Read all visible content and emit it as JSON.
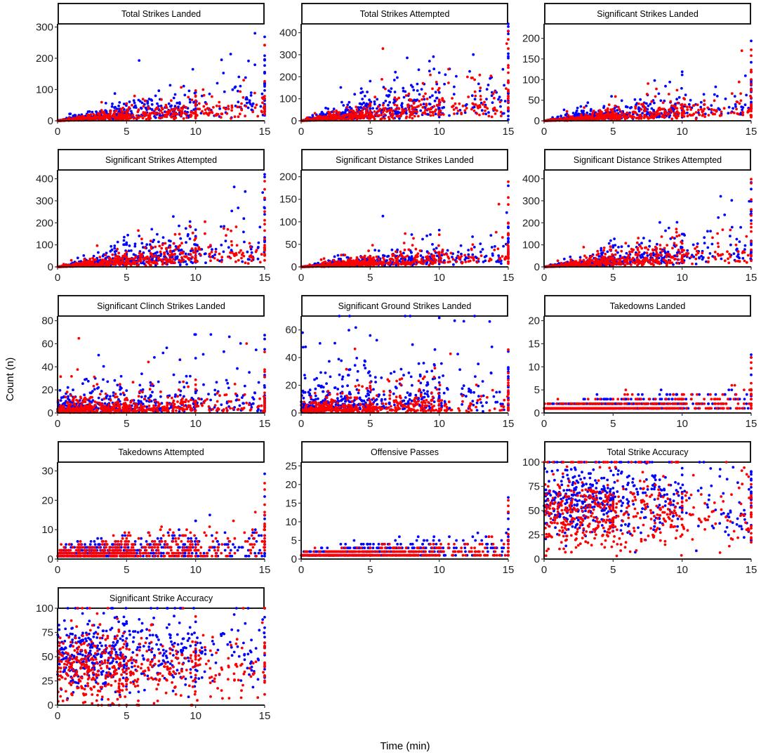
{
  "chart_data": {
    "type": "scatter",
    "layout": "facet-grid 5 rows x 3 columns",
    "xlabel": "Time (min)",
    "ylabel": "Count (n)",
    "xlim": [
      0,
      15
    ],
    "xticks": [
      0,
      5,
      10,
      15
    ],
    "series": [
      {
        "name": "blue",
        "color": "#0000ff"
      },
      {
        "name": "red",
        "color": "#ff0000"
      }
    ],
    "point_generation_note": "Thousands of points per panel; approximated by seeded sample using per-panel scale values (y value at t=15 typical upper range)",
    "panels": [
      {
        "title": "Total Strikes Landed",
        "ylim": [
          0,
          310
        ],
        "yticks": [
          0,
          100,
          200,
          300
        ],
        "kind": "count",
        "blue_scale": 120,
        "red_scale": 75,
        "max_point": 280
      },
      {
        "title": "Total Strikes Attempted",
        "ylim": [
          0,
          440
        ],
        "yticks": [
          0,
          100,
          200,
          300,
          400
        ],
        "kind": "count",
        "blue_scale": 220,
        "red_scale": 160,
        "max_point": 440
      },
      {
        "title": "Significant Strikes Landed",
        "ylim": [
          0,
          235
        ],
        "yticks": [
          0,
          50,
          100,
          150,
          200
        ],
        "kind": "count",
        "blue_scale": 75,
        "red_scale": 55,
        "max_point": 200
      },
      {
        "title": "Significant Strikes Attempted",
        "ylim": [
          0,
          440
        ],
        "yticks": [
          0,
          100,
          200,
          300,
          400
        ],
        "kind": "count",
        "blue_scale": 170,
        "red_scale": 140,
        "max_point": 420
      },
      {
        "title": "Significant Distance Strikes Landed",
        "ylim": [
          0,
          215
        ],
        "yticks": [
          0,
          50,
          100,
          150,
          200
        ],
        "kind": "count",
        "blue_scale": 55,
        "red_scale": 45,
        "max_point": 195
      },
      {
        "title": "Significant Distance Strikes Attempted",
        "ylim": [
          0,
          440
        ],
        "yticks": [
          0,
          100,
          200,
          300,
          400
        ],
        "kind": "count",
        "blue_scale": 150,
        "red_scale": 130,
        "max_point": 410
      },
      {
        "title": "Significant Clinch Strikes Landed",
        "ylim": [
          0,
          84
        ],
        "yticks": [
          0,
          20,
          40,
          60,
          80
        ],
        "kind": "sparse",
        "blue_scale": 14,
        "red_scale": 10,
        "max_point": 68
      },
      {
        "title": "Significant Ground Strikes Landed",
        "ylim": [
          0,
          70
        ],
        "yticks": [
          0,
          20,
          40,
          60
        ],
        "kind": "sparse",
        "blue_scale": 18,
        "red_scale": 8,
        "max_point": 70
      },
      {
        "title": "Takedowns Landed",
        "ylim": [
          0,
          21
        ],
        "yticks": [
          0,
          5,
          10,
          15,
          20
        ],
        "kind": "discrete",
        "blue_scale": 3,
        "red_scale": 3,
        "max_point": 13
      },
      {
        "title": "Takedowns Attempted",
        "ylim": [
          0,
          33
        ],
        "yticks": [
          0,
          10,
          20,
          30
        ],
        "kind": "discrete",
        "blue_scale": 8,
        "red_scale": 8,
        "max_point": 30
      },
      {
        "title": "Offensive Passes",
        "ylim": [
          0,
          26
        ],
        "yticks": [
          0,
          5,
          10,
          15,
          20,
          25
        ],
        "kind": "discrete",
        "blue_scale": 4,
        "red_scale": 3,
        "max_point": 17
      },
      {
        "title": "Total Strike Accuracy",
        "ylim": [
          0,
          100
        ],
        "yticks": [
          0,
          25,
          50,
          75,
          100
        ],
        "kind": "accuracy",
        "blue_scale": 60,
        "red_scale": 45,
        "max_point": 100
      },
      {
        "title": "Significant Strike Accuracy",
        "ylim": [
          0,
          100
        ],
        "yticks": [
          0,
          25,
          50,
          75,
          100
        ],
        "kind": "accuracy",
        "blue_scale": 52,
        "red_scale": 38,
        "max_point": 100
      }
    ]
  }
}
